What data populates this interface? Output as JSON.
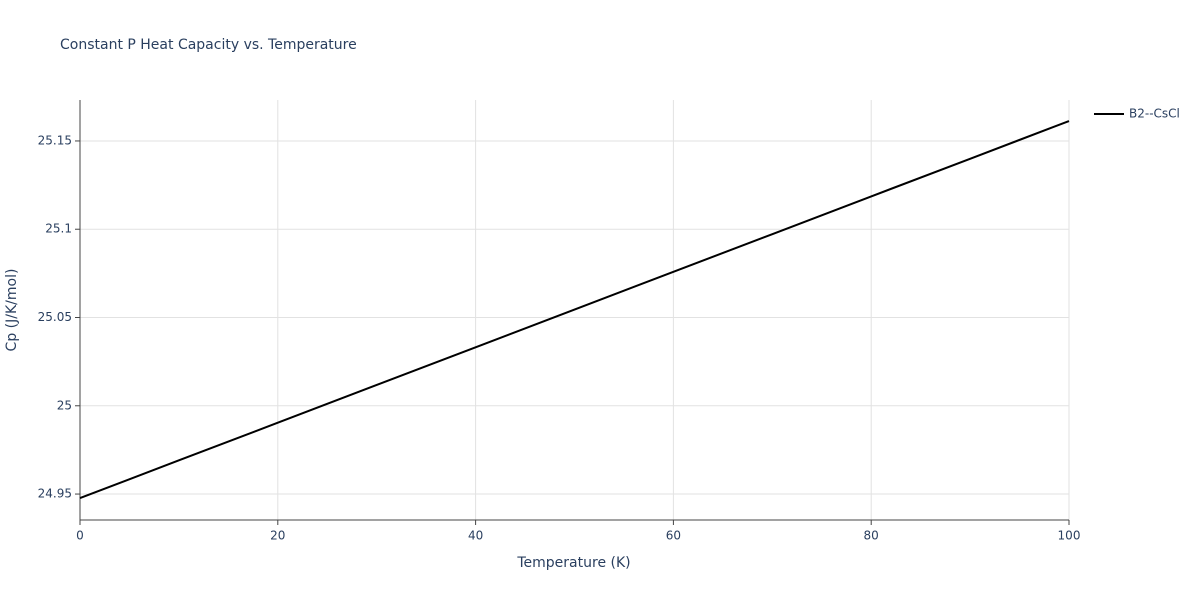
{
  "chart_data": {
    "type": "line",
    "title": "Constant P Heat Capacity vs. Temperature",
    "x_label": "Temperature (K)",
    "y_label": "Cp (J/K/mol)",
    "x": [
      0,
      10,
      20,
      30,
      40,
      50,
      60,
      70,
      80,
      90,
      100
    ],
    "series": [
      {
        "name": "B2--CsCl",
        "color": "#000000",
        "values": [
          24.9477,
          24.9691,
          24.9904,
          25.0118,
          25.0331,
          25.0545,
          25.0759,
          25.0972,
          25.1186,
          25.1399,
          25.1613
        ]
      }
    ],
    "xlim": [
      0,
      100
    ],
    "xticks": [
      0,
      20,
      40,
      60,
      80,
      100
    ],
    "ylim": [
      24.9353,
      25.1732
    ],
    "yticks": [
      24.95,
      25,
      25.05,
      25.1,
      25.15
    ],
    "grid": true,
    "legend": "top-right"
  }
}
